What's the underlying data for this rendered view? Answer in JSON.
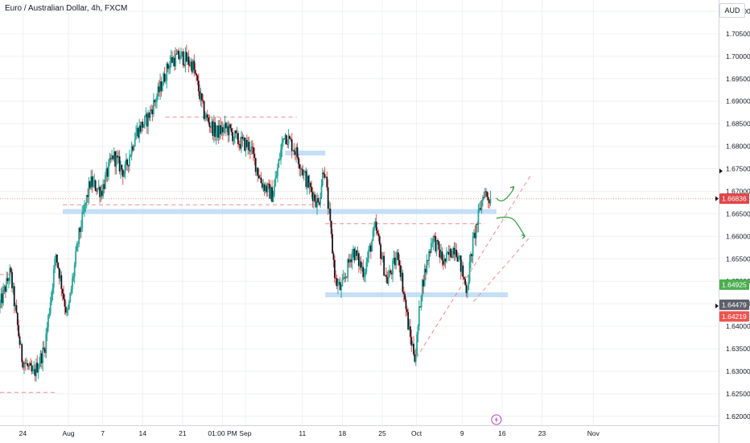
{
  "header": {
    "title": "Euro / Australian Dollar, 4h, FXCM",
    "currency": "AUD"
  },
  "colors": {
    "up": "#26a69a",
    "down": "#ef5350",
    "candle_body": "#131722",
    "zone": "#bbd9f5",
    "dash_red": "#f28b8b",
    "arrow_green": "#2e9e3e",
    "grid": "#eef0f3",
    "tag_red": "#e0464a",
    "tag_green": "#4caf50",
    "tag_gray": "#5d606b",
    "tag_lightred": "#ef5350"
  },
  "chart_data": {
    "type": "candlestick",
    "title": "Euro / Australian Dollar, 4h, FXCM",
    "currency": "AUD",
    "ylim": [
      1.618,
      1.7125
    ],
    "y_ticks": [
      "1.71000",
      "1.70500",
      "1.70000",
      "1.69500",
      "1.69000",
      "1.68500",
      "1.68000",
      "1.67500",
      "1.67000",
      "1.66500",
      "1.66000",
      "1.65500",
      "1.65000",
      "1.64500",
      "1.64000",
      "1.63500",
      "1.63000",
      "1.62500",
      "1.62000"
    ],
    "x_ticks": [
      "24",
      "Aug",
      "7",
      "14",
      "21",
      "01:00 PM",
      "Sep",
      "11",
      "18",
      "25",
      "Oct",
      "9",
      "16",
      "23",
      "Nov"
    ],
    "price_path": [
      {
        "date": "Jul 20",
        "price": 1.644
      },
      {
        "date": "Jul 22",
        "price": 1.652
      },
      {
        "date": "Jul 24",
        "price": 1.633
      },
      {
        "date": "Jul 26",
        "price": 1.629
      },
      {
        "date": "Jul 28",
        "price": 1.635
      },
      {
        "date": "Jul 30",
        "price": 1.656
      },
      {
        "date": "Aug 1",
        "price": 1.642
      },
      {
        "date": "Aug 3",
        "price": 1.66
      },
      {
        "date": "Aug 5",
        "price": 1.672
      },
      {
        "date": "Aug 7",
        "price": 1.67
      },
      {
        "date": "Aug 9",
        "price": 1.678
      },
      {
        "date": "Aug 11",
        "price": 1.674
      },
      {
        "date": "Aug 13",
        "price": 1.683
      },
      {
        "date": "Aug 15",
        "price": 1.686
      },
      {
        "date": "Aug 17",
        "price": 1.692
      },
      {
        "date": "Aug 19",
        "price": 1.699
      },
      {
        "date": "Aug 21",
        "price": 1.7
      },
      {
        "date": "Aug 23",
        "price": 1.698
      },
      {
        "date": "Aug 25",
        "price": 1.687
      },
      {
        "date": "Aug 27",
        "price": 1.683
      },
      {
        "date": "Aug 29",
        "price": 1.684
      },
      {
        "date": "Aug 31",
        "price": 1.681
      },
      {
        "date": "Sep 2",
        "price": 1.68
      },
      {
        "date": "Sep 4",
        "price": 1.672
      },
      {
        "date": "Sep 6",
        "price": 1.669
      },
      {
        "date": "Sep 8",
        "price": 1.683
      },
      {
        "date": "Sep 10",
        "price": 1.679
      },
      {
        "date": "Sep 12",
        "price": 1.672
      },
      {
        "date": "Sep 14",
        "price": 1.667
      },
      {
        "date": "Sep 15",
        "price": 1.676
      },
      {
        "date": "Sep 17",
        "price": 1.65
      },
      {
        "date": "Sep 18",
        "price": 1.648
      },
      {
        "date": "Sep 20",
        "price": 1.657
      },
      {
        "date": "Sep 22",
        "price": 1.652
      },
      {
        "date": "Sep 24",
        "price": 1.662
      },
      {
        "date": "Sep 26",
        "price": 1.65
      },
      {
        "date": "Sep 28",
        "price": 1.656
      },
      {
        "date": "Sep 30",
        "price": 1.638
      },
      {
        "date": "Oct 1",
        "price": 1.633
      },
      {
        "date": "Oct 2",
        "price": 1.648
      },
      {
        "date": "Oct 4",
        "price": 1.66
      },
      {
        "date": "Oct 6",
        "price": 1.654
      },
      {
        "date": "Oct 8",
        "price": 1.658
      },
      {
        "date": "Oct 10",
        "price": 1.648
      },
      {
        "date": "Oct 11",
        "price": 1.658
      },
      {
        "date": "Oct 13",
        "price": 1.67
      },
      {
        "date": "Oct 14",
        "price": 1.6684
      }
    ],
    "zones": [
      {
        "price": 1.6655,
        "from": "Jul 31",
        "to": "Oct 15"
      },
      {
        "price": 1.6785,
        "from": "Sep 8",
        "to": "Sep 15"
      },
      {
        "price": 1.647,
        "from": "Sep 15",
        "to": "Oct 17"
      }
    ],
    "dashed_levels": [
      {
        "price": 1.6865,
        "from": "Aug 18",
        "to": "Sep 10"
      },
      {
        "price": 1.667,
        "from": "Jul 31",
        "to": "Sep 15"
      },
      {
        "price": 1.6628,
        "from": "Sep 15",
        "to": "Oct 13"
      },
      {
        "price": 1.6253,
        "from": "Jul 20",
        "to": "Jul 30"
      },
      {
        "price": 1.6515,
        "from": "Jul 20",
        "to": "Jul 22"
      }
    ],
    "trendlines": [
      {
        "from_date": "Oct 1",
        "from_price": 1.633,
        "to_date": "Oct 21",
        "to_price": 1.6735
      },
      {
        "from_date": "Oct 11",
        "from_price": 1.6455,
        "to_date": "Oct 21",
        "to_price": 1.66
      }
    ],
    "projections": [
      {
        "direction": "up",
        "from_date": "Oct 15",
        "from_price": 1.6685,
        "to_date": "Oct 18",
        "to_price": 1.671
      },
      {
        "direction": "down",
        "from_date": "Oct 15",
        "from_price": 1.664,
        "to_date": "Oct 20",
        "to_price": 1.66
      }
    ],
    "price_tags": [
      {
        "value": "1.66836",
        "price": 1.66836,
        "color": "tag_red"
      },
      {
        "value": "1.64925",
        "price": 1.64925,
        "color": "tag_green"
      },
      {
        "value": "1.64479",
        "price": 1.64479,
        "color": "tag_gray"
      },
      {
        "value": "1.64219",
        "price": 1.64219,
        "color": "tag_lightred"
      }
    ],
    "last_price": 1.66836,
    "grid": true
  }
}
